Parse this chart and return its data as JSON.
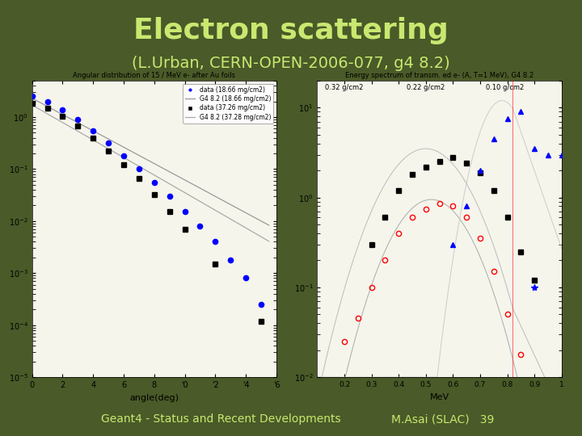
{
  "background_color": "#4a5a28",
  "title": "Electron scattering",
  "subtitle": "(L.Urban, CERN-OPEN-2006-077, g4 8.2)",
  "title_color": "#c8e870",
  "title_fontsize": 26,
  "subtitle_fontsize": 14,
  "footer_left": "Geant4 - Status and Recent Developments",
  "footer_right": "M.Asai (SLAC)   39",
  "footer_color": "#c8e870",
  "footer_fontsize": 10,
  "plot_bg": "#f5f5ec",
  "left_plot_title": "Angular distribution of 15 / MeV e- after Au foils",
  "right_plot_title": "Energy spectrum of transm. ed e- (A, T=1 MeV), G4 8.2",
  "left_xlabel": "angle(deg)",
  "right_xlabel": "MeV"
}
